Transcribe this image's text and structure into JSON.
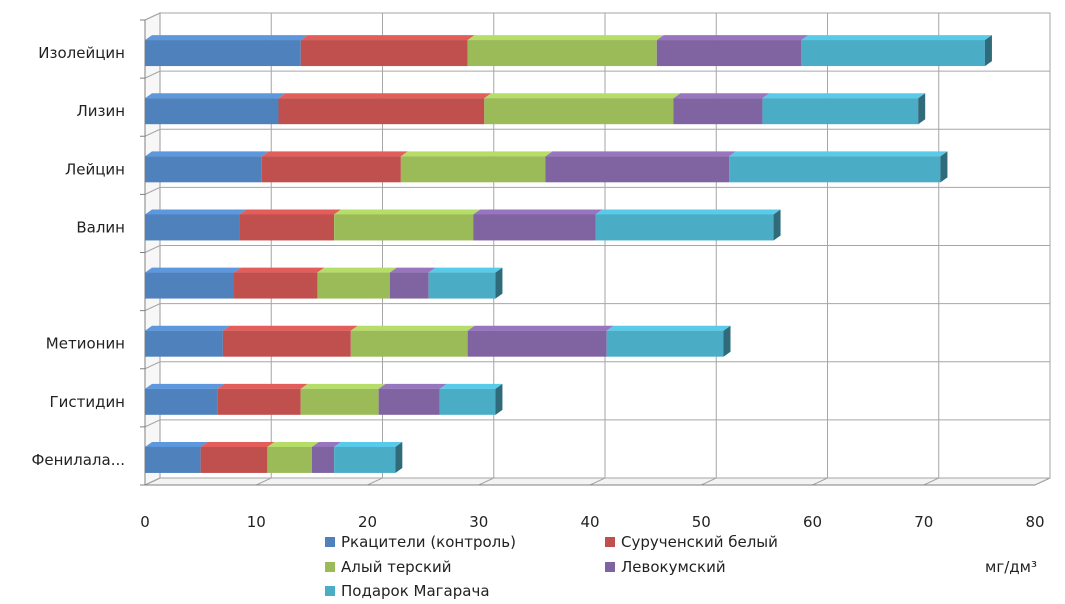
{
  "chart_data": {
    "type": "bar",
    "orientation": "horizontal",
    "stacked": true,
    "style": "3d",
    "categories": [
      "Изолейцин",
      "Лизин",
      "Лейцин",
      "Валин",
      "",
      "Метионин",
      "Гистидин",
      "Фенилала..."
    ],
    "series": [
      {
        "name": "Ркацители (контроль)",
        "color": "#4f81bd",
        "values": [
          14,
          12,
          10.5,
          8.5,
          8,
          7,
          6.5,
          5
        ]
      },
      {
        "name": "Сурученский белый",
        "color": "#c0504d",
        "values": [
          15,
          18.5,
          12.5,
          8.5,
          7.5,
          11.5,
          7.5,
          6
        ]
      },
      {
        "name": "Алый терский",
        "color": "#9bbb59",
        "values": [
          17,
          17,
          13,
          12.5,
          6.5,
          10.5,
          7,
          4
        ]
      },
      {
        "name": "Левокумский",
        "color": "#8064a2",
        "values": [
          13,
          8,
          16.5,
          11,
          3.5,
          12.5,
          5.5,
          2
        ]
      },
      {
        "name": "Подарок Магарача",
        "color": "#4bacc6",
        "values": [
          16.5,
          14,
          19,
          16,
          6,
          10.5,
          5,
          5.5
        ]
      }
    ],
    "xlim": [
      0,
      80
    ],
    "x_ticks": [
      "0",
      "10",
      "20",
      "30",
      "40",
      "50",
      "60",
      "70",
      "80"
    ],
    "x_unit": "мг/дм³",
    "grid": true,
    "legend_position": "bottom"
  }
}
